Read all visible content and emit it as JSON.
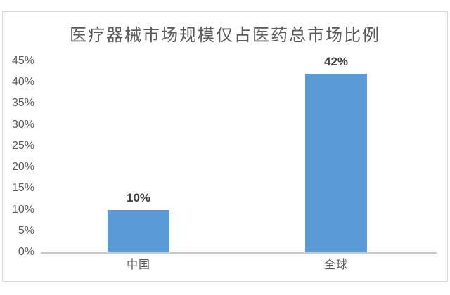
{
  "chart_data": {
    "type": "bar",
    "title": "医疗器械市场规模仅占医药总市场比例",
    "categories": [
      "中国",
      "全球"
    ],
    "values": [
      10,
      42
    ],
    "data_labels": [
      "10%",
      "42%"
    ],
    "xlabel": "",
    "ylabel": "",
    "ylim": [
      0,
      45
    ],
    "ytick_step": 5,
    "ytick_labels": [
      "0%",
      "5%",
      "10%",
      "15%",
      "20%",
      "25%",
      "30%",
      "35%",
      "40%",
      "45%"
    ],
    "grid": false,
    "legend": "none",
    "colors": {
      "bar": "#5b9bd5",
      "title_text": "#595959",
      "axis_tick_text": "#595959",
      "category_text": "#595959",
      "data_label_text": "#404040",
      "axis_line": "#c9c9c9",
      "frame_border": "#d9d9d9",
      "background": "#ffffff"
    }
  }
}
